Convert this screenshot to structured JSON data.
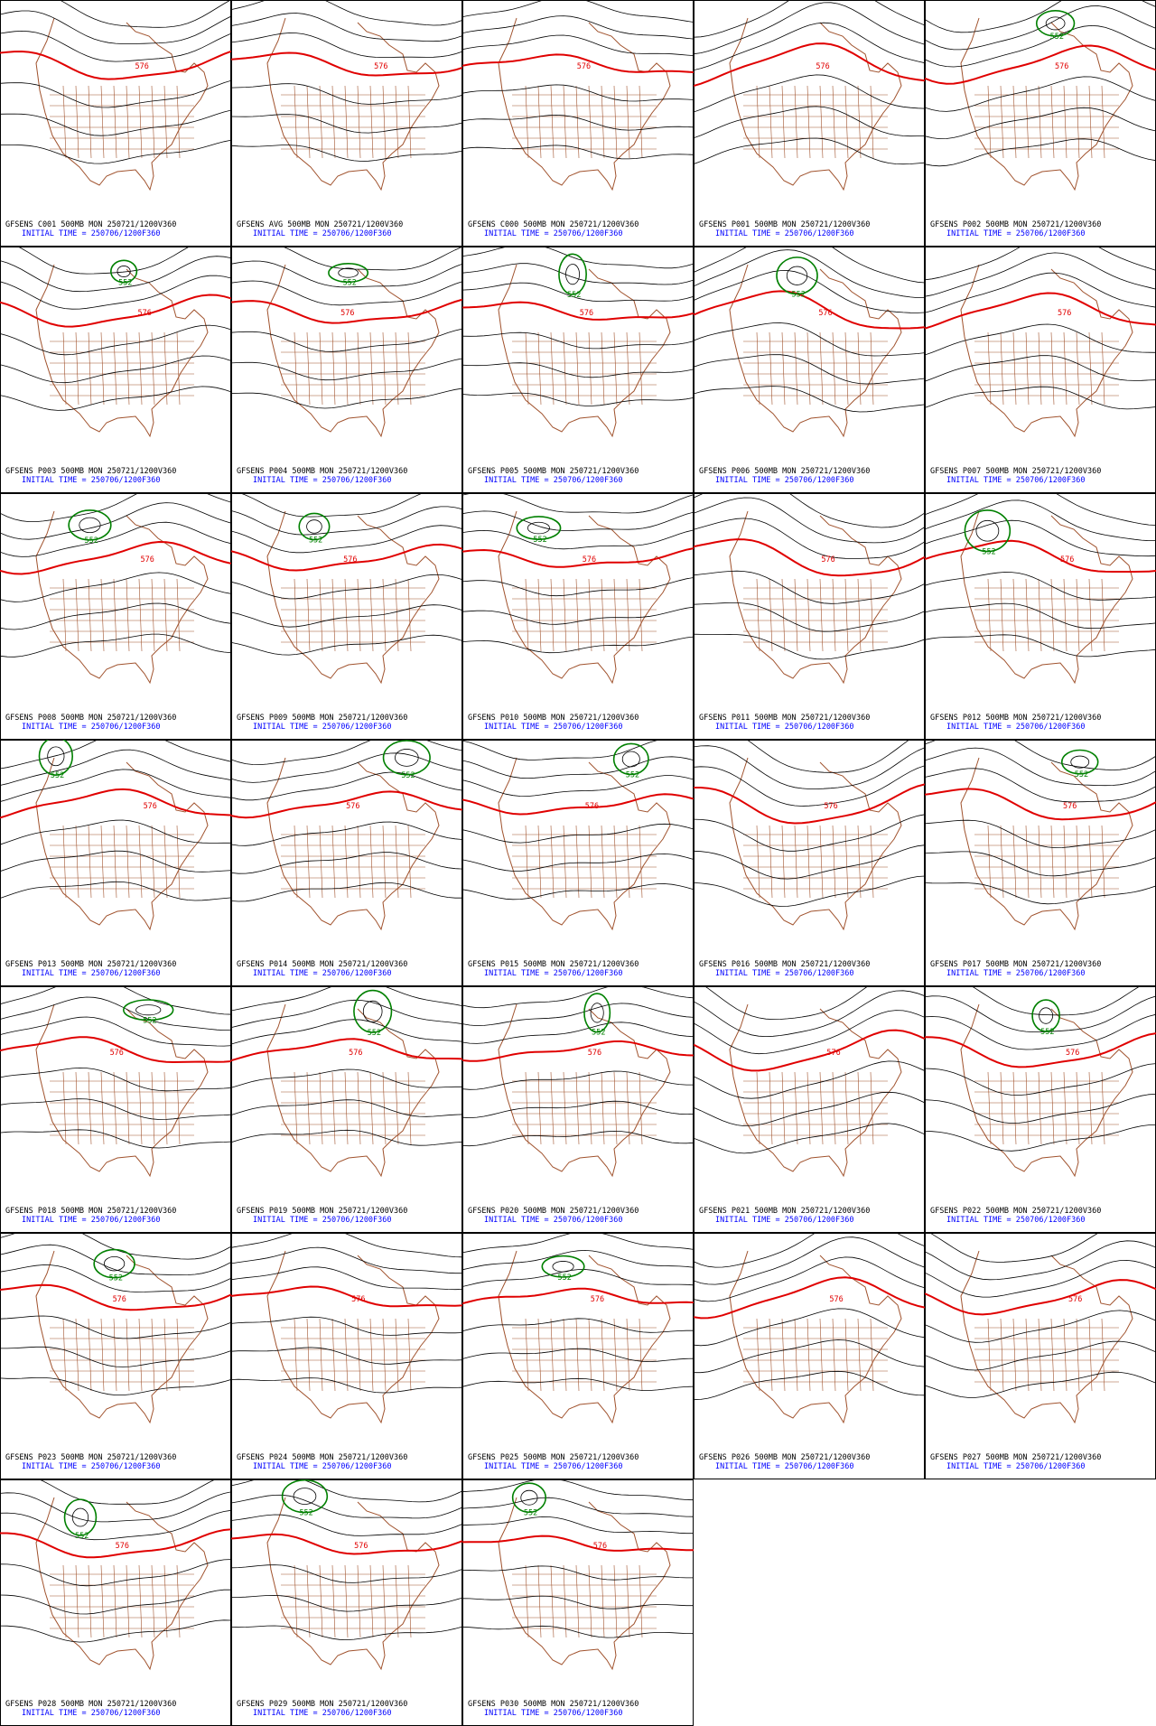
{
  "panels": [
    {
      "line1": "GFSENS C001 500MB MON 250721/1200V360",
      "line2": "INITIAL TIME = 250706/1200F360",
      "labels": [
        "576"
      ]
    },
    {
      "line1": "GFSENS AVG 500MB MON 250721/1200V360",
      "line2": "INITIAL TIME = 250706/1200F360",
      "labels": [
        "576"
      ]
    },
    {
      "line1": "GFSENS C000 500MB MON 250721/1200V360",
      "line2": "INITIAL TIME = 250706/1200F360",
      "labels": [
        "576"
      ]
    },
    {
      "line1": "GFSENS P001 500MB MON 250721/1200V360",
      "line2": "INITIAL TIME = 250706/1200F360",
      "labels": [
        "576"
      ]
    },
    {
      "line1": "GFSENS P002 500MB MON 250721/1200V360",
      "line2": "INITIAL TIME = 250706/1200F360",
      "labels": [
        "576",
        "552"
      ]
    },
    {
      "line1": "GFSENS P003 500MB MON 250721/1200V360",
      "line2": "INITIAL TIME = 250706/1200F360",
      "labels": [
        "576",
        "552"
      ]
    },
    {
      "line1": "GFSENS P004 500MB MON 250721/1200V360",
      "line2": "INITIAL TIME = 250706/1200F360",
      "labels": [
        "576",
        "552"
      ]
    },
    {
      "line1": "GFSENS P005 500MB MON 250721/1200V360",
      "line2": "INITIAL TIME = 250706/1200F360",
      "labels": [
        "576",
        "552"
      ]
    },
    {
      "line1": "GFSENS P006 500MB MON 250721/1200V360",
      "line2": "INITIAL TIME = 250706/1200F360",
      "labels": [
        "576",
        "552"
      ]
    },
    {
      "line1": "GFSENS P007 500MB MON 250721/1200V360",
      "line2": "INITIAL TIME = 250706/1200F360",
      "labels": [
        "576"
      ]
    },
    {
      "line1": "GFSENS P008 500MB MON 250721/1200V360",
      "line2": "INITIAL TIME = 250706/1200F360",
      "labels": [
        "576",
        "552"
      ]
    },
    {
      "line1": "GFSENS P009 500MB MON 250721/1200V360",
      "line2": "INITIAL TIME = 250706/1200F360",
      "labels": [
        "576",
        "552"
      ]
    },
    {
      "line1": "GFSENS P010 500MB MON 250721/1200V360",
      "line2": "INITIAL TIME = 250706/1200F360",
      "labels": [
        "576",
        "552"
      ]
    },
    {
      "line1": "GFSENS P011 500MB MON 250721/1200V360",
      "line2": "INITIAL TIME = 250706/1200F360",
      "labels": [
        "576"
      ]
    },
    {
      "line1": "GFSENS P012 500MB MON 250721/1200V360",
      "line2": "INITIAL TIME = 250706/1200F360",
      "labels": [
        "576",
        "552"
      ]
    },
    {
      "line1": "GFSENS P013 500MB MON 250721/1200V360",
      "line2": "INITIAL TIME = 250706/1200F360",
      "labels": [
        "576",
        "552"
      ]
    },
    {
      "line1": "GFSENS P014 500MB MON 250721/1200V360",
      "line2": "INITIAL TIME = 250706/1200F360",
      "labels": [
        "576",
        "552"
      ]
    },
    {
      "line1": "GFSENS P015 500MB MON 250721/1200V360",
      "line2": "INITIAL TIME = 250706/1200F360",
      "labels": [
        "576",
        "552"
      ]
    },
    {
      "line1": "GFSENS P016 500MB MON 250721/1200V360",
      "line2": "INITIAL TIME = 250706/1200F360",
      "labels": [
        "576"
      ]
    },
    {
      "line1": "GFSENS P017 500MB MON 250721/1200V360",
      "line2": "INITIAL TIME = 250706/1200F360",
      "labels": [
        "576",
        "552"
      ]
    },
    {
      "line1": "GFSENS P018 500MB MON 250721/1200V360",
      "line2": "INITIAL TIME = 250706/1200F360",
      "labels": [
        "576",
        "552"
      ]
    },
    {
      "line1": "GFSENS P019 500MB MON 250721/1200V360",
      "line2": "INITIAL TIME = 250706/1200F360",
      "labels": [
        "576",
        "552"
      ]
    },
    {
      "line1": "GFSENS P020 500MB MON 250721/1200V360",
      "line2": "INITIAL TIME = 250706/1200F360",
      "labels": [
        "576",
        "552"
      ]
    },
    {
      "line1": "GFSENS P021 500MB MON 250721/1200V360",
      "line2": "INITIAL TIME = 250706/1200F360",
      "labels": [
        "576"
      ]
    },
    {
      "line1": "GFSENS P022 500MB MON 250721/1200V360",
      "line2": "INITIAL TIME = 250706/1200F360",
      "labels": [
        "576",
        "552"
      ]
    },
    {
      "line1": "GFSENS P023 500MB MON 250721/1200V360",
      "line2": "INITIAL TIME = 250706/1200F360",
      "labels": [
        "576",
        "552"
      ]
    },
    {
      "line1": "GFSENS P024 500MB MON 250721/1200V360",
      "line2": "INITIAL TIME = 250706/1200F360",
      "labels": [
        "576"
      ]
    },
    {
      "line1": "GFSENS P025 500MB MON 250721/1200V360",
      "line2": "INITIAL TIME = 250706/1200F360",
      "labels": [
        "576",
        "552"
      ]
    },
    {
      "line1": "GFSENS P026 500MB MON 250721/1200V360",
      "line2": "INITIAL TIME = 250706/1200F360",
      "labels": [
        "576"
      ]
    },
    {
      "line1": "GFSENS P027 500MB MON 250721/1200V360",
      "line2": "INITIAL TIME = 250706/1200F360",
      "labels": [
        "576"
      ]
    },
    {
      "line1": "GFSENS P028 500MB MON 250721/1200V360",
      "line2": "INITIAL TIME = 250706/1200F360",
      "labels": [
        "576",
        "552"
      ]
    },
    {
      "line1": "GFSENS P029 500MB MON 250721/1200V360",
      "line2": "INITIAL TIME = 250706/1200F360",
      "labels": [
        "576",
        "552"
      ]
    },
    {
      "line1": "GFSENS P030 500MB MON 250721/1200V360",
      "line2": "INITIAL TIME = 250706/1200F360",
      "labels": [
        "576",
        "552"
      ]
    }
  ]
}
